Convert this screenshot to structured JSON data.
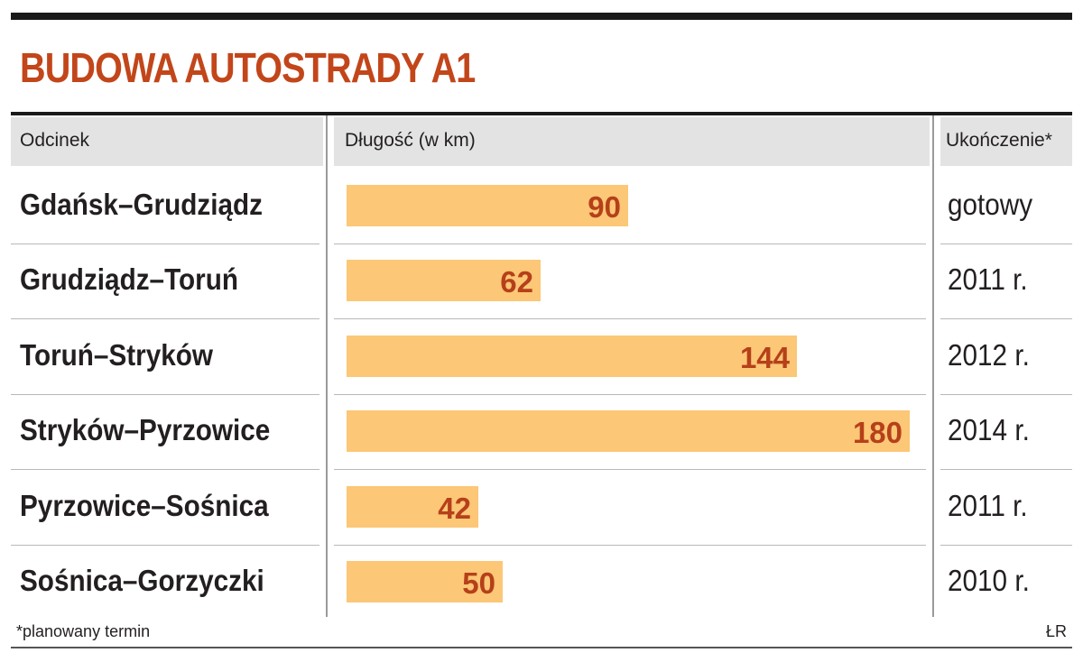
{
  "title": "BUDOWA AUTOSTRADY A1",
  "headers": {
    "segment": "Odcinek",
    "length": "Długość (w km)",
    "completion": "Ukończenie*"
  },
  "chart_data": {
    "type": "bar",
    "orientation": "horizontal",
    "title": "BUDOWA AUTOSTRADY A1",
    "categories": [
      "Gdańsk–Grudziądz",
      "Grudziądz–Toruń",
      "Toruń–Stryków",
      "Stryków–Pyrzowice",
      "Pyrzowice–Sośnica",
      "Sośnica–Gorzyczki"
    ],
    "values": [
      90,
      62,
      144,
      180,
      42,
      50
    ],
    "completion": [
      "gotowy",
      "2011 r.",
      "2012 r.",
      "2014 r.",
      "2011 r.",
      "2010 r."
    ],
    "value_labels": [
      "90",
      "62",
      "144",
      "180",
      "42",
      "50"
    ],
    "xlim": [
      0,
      180
    ],
    "bar_color": "#fcc776",
    "value_color": "#b5401a",
    "title_color": "#c2461a"
  },
  "footnote": "*planowany termin",
  "source": "ŁR"
}
